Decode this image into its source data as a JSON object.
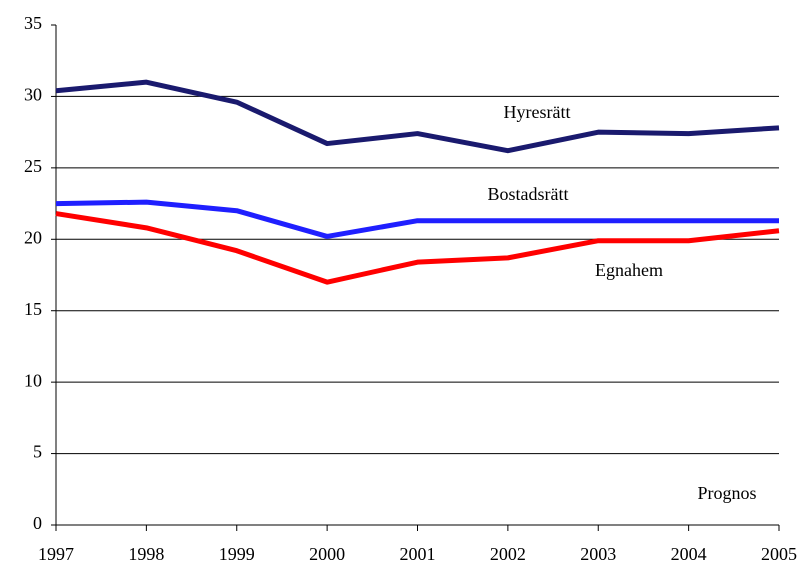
{
  "chart_data": {
    "type": "line",
    "categories": [
      "1997",
      "1998",
      "1999",
      "2000",
      "2001",
      "2002",
      "2003",
      "2004",
      "2005"
    ],
    "series": [
      {
        "name": "Hyresrätt",
        "color": "#1a1a6e",
        "values": [
          30.4,
          31.0,
          29.6,
          26.7,
          27.4,
          26.2,
          27.5,
          27.4,
          27.8
        ]
      },
      {
        "name": "Bostadsrätt",
        "color": "#1f1fff",
        "values": [
          22.5,
          22.6,
          22.0,
          20.2,
          21.3,
          21.3,
          21.3,
          21.3,
          21.3
        ]
      },
      {
        "name": "Egnahem",
        "color": "#ff0000",
        "values": [
          21.8,
          20.8,
          19.2,
          17.0,
          18.4,
          18.7,
          19.9,
          19.9,
          20.6
        ]
      }
    ],
    "annotations": [
      "Prognos"
    ],
    "ylim": [
      0,
      35
    ],
    "yticks": [
      0,
      5,
      10,
      15,
      20,
      25,
      30,
      35
    ],
    "grid": true
  }
}
